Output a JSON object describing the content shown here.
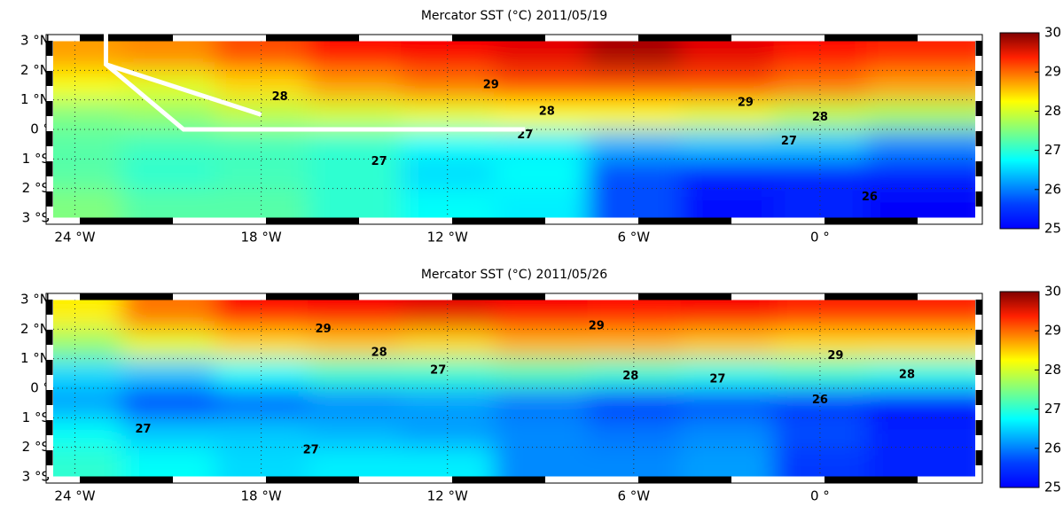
{
  "chart_data": [
    {
      "type": "contour",
      "title": "Mercator SST (°C) 2011/05/19",
      "colormap": "jet",
      "x": [
        -24,
        -21,
        -18,
        -15,
        -12,
        -9,
        -6,
        -3,
        0,
        3
      ],
      "y": [
        2.5,
        1.5,
        0.5,
        -0.5,
        -1.5,
        -2.5
      ],
      "sst": [
        [
          28.6,
          28.7,
          29.0,
          29.3,
          29.4,
          29.5,
          29.8,
          29.5,
          29.3,
          29.2
        ],
        [
          28.1,
          28.0,
          28.3,
          28.6,
          28.8,
          29.0,
          29.0,
          29.0,
          28.8,
          28.6
        ],
        [
          27.5,
          27.6,
          27.8,
          27.9,
          28.0,
          28.1,
          28.1,
          28.0,
          27.8,
          27.7
        ],
        [
          27.3,
          27.2,
          27.2,
          27.1,
          26.9,
          26.8,
          26.5,
          26.6,
          26.6,
          26.3
        ],
        [
          27.3,
          27.1,
          27.2,
          27.1,
          26.7,
          26.9,
          26.0,
          25.8,
          25.8,
          25.8
        ],
        [
          27.5,
          27.3,
          27.3,
          27.1,
          26.9,
          26.8,
          26.0,
          25.7,
          25.8,
          25.6
        ]
      ],
      "xlim": [
        -24.7,
        5
      ],
      "ylim": [
        -3,
        3
      ],
      "xticks": [
        {
          "value": -24,
          "label": "24 °W"
        },
        {
          "value": -18,
          "label": "18 °W"
        },
        {
          "value": -12,
          "label": "12 °W"
        },
        {
          "value": -6,
          "label": "6 °W"
        },
        {
          "value": 0,
          "label": "0 °"
        }
      ],
      "yticks": [
        {
          "value": 3,
          "label": "3 °N"
        },
        {
          "value": 2,
          "label": "2 °N"
        },
        {
          "value": 1,
          "label": "1 °N"
        },
        {
          "value": 0,
          "label": "0 °"
        },
        {
          "value": -1,
          "label": "1 °S"
        },
        {
          "value": -2,
          "label": "2 °S"
        },
        {
          "value": -3,
          "label": "3 °S"
        }
      ],
      "clim": [
        25,
        30
      ],
      "cticks": [
        25,
        26,
        27,
        28,
        29,
        30
      ],
      "contour_labels": [
        {
          "lon": -10.6,
          "lat": 1.5,
          "value": 29
        },
        {
          "lon": -17.4,
          "lat": 1.1,
          "value": 28
        },
        {
          "lon": -8.8,
          "lat": 0.6,
          "value": 28
        },
        {
          "lon": -9.5,
          "lat": -0.2,
          "value": 27
        },
        {
          "lon": -2.4,
          "lat": 0.9,
          "value": 29
        },
        {
          "lon": -1,
          "lat": -0.4,
          "value": 27
        },
        {
          "lon": 0,
          "lat": 0.4,
          "value": 28
        },
        {
          "lon": -14.2,
          "lat": -1.1,
          "value": 27
        },
        {
          "lon": 1.6,
          "lat": -2.3,
          "value": 26
        }
      ]
    },
    {
      "type": "contour",
      "title": "Mercator SST (°C) 2011/05/26",
      "colormap": "jet",
      "x": [
        -24,
        -21,
        -18,
        -15,
        -12,
        -9,
        -6,
        -3,
        0,
        3
      ],
      "y": [
        2.5,
        1.5,
        0.5,
        -0.5,
        -1.5,
        -2.5
      ],
      "sst": [
        [
          28.2,
          28.8,
          29.3,
          29.4,
          29.5,
          29.4,
          29.3,
          29.4,
          29.2,
          29.2
        ],
        [
          27.6,
          28.0,
          28.3,
          28.4,
          28.3,
          28.5,
          28.5,
          28.4,
          28.3,
          28.3
        ],
        [
          26.7,
          26.6,
          26.9,
          27.1,
          27.1,
          27.2,
          27.1,
          27.0,
          27.1,
          27.0
        ],
        [
          26.4,
          25.9,
          26.1,
          26.3,
          26.4,
          26.2,
          25.9,
          26.0,
          25.9,
          25.7
        ],
        [
          26.9,
          26.6,
          26.6,
          26.5,
          26.4,
          26.3,
          26.2,
          26.3,
          26.0,
          25.8
        ],
        [
          27.1,
          26.9,
          26.7,
          26.8,
          26.8,
          26.3,
          26.3,
          26.4,
          25.9,
          25.8
        ]
      ],
      "xlim": [
        -24.7,
        5
      ],
      "ylim": [
        -3,
        3
      ],
      "xticks": [
        {
          "value": -24,
          "label": "24 °W"
        },
        {
          "value": -18,
          "label": "18 °W"
        },
        {
          "value": -12,
          "label": "12 °W"
        },
        {
          "value": -6,
          "label": "6 °W"
        },
        {
          "value": 0,
          "label": "0 °"
        }
      ],
      "yticks": [
        {
          "value": 3,
          "label": "3 °N"
        },
        {
          "value": 2,
          "label": "2 °N"
        },
        {
          "value": 1,
          "label": "1 °N"
        },
        {
          "value": 0,
          "label": "0 °"
        },
        {
          "value": -1,
          "label": "1 °S"
        },
        {
          "value": -2,
          "label": "2 °S"
        },
        {
          "value": -3,
          "label": "3 °S"
        }
      ],
      "clim": [
        25,
        30
      ],
      "cticks": [
        25,
        26,
        27,
        28,
        29,
        30
      ],
      "contour_labels": [
        {
          "lon": -16,
          "lat": 2.0,
          "value": 29
        },
        {
          "lon": -7.2,
          "lat": 2.1,
          "value": 29
        },
        {
          "lon": 0.5,
          "lat": 1.1,
          "value": 29
        },
        {
          "lon": -14.2,
          "lat": 1.2,
          "value": 28
        },
        {
          "lon": -6.1,
          "lat": 0.4,
          "value": 28
        },
        {
          "lon": 2.8,
          "lat": 0.45,
          "value": 28
        },
        {
          "lon": -12.3,
          "lat": 0.6,
          "value": 27
        },
        {
          "lon": -3.3,
          "lat": 0.3,
          "value": 27
        },
        {
          "lon": 0,
          "lat": -0.4,
          "value": 26
        },
        {
          "lon": -21.8,
          "lat": -1.4,
          "value": 27
        },
        {
          "lon": -16.4,
          "lat": -2.1,
          "value": 27
        }
      ]
    }
  ]
}
